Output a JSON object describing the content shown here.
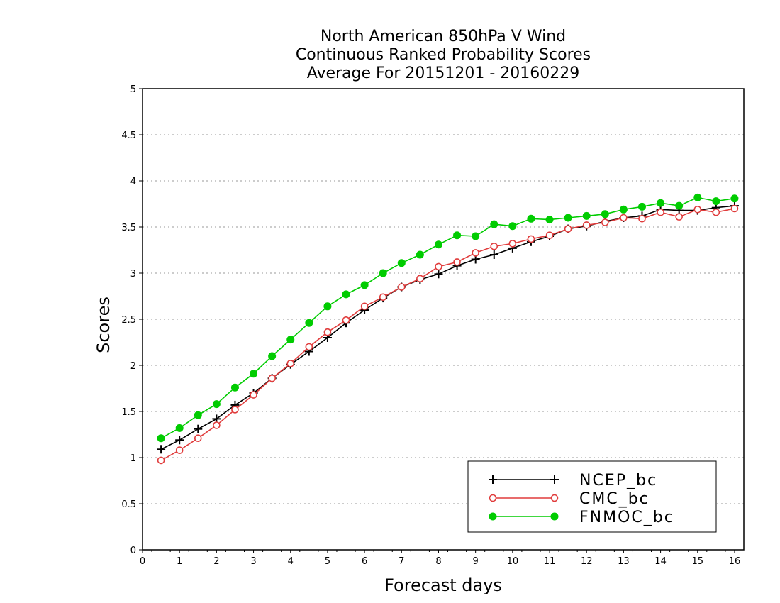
{
  "chart_data": {
    "type": "line",
    "title": [
      "North American 850hPa V Wind",
      "Continuous Ranked Probability Scores",
      "Average For 20151201 - 20160229"
    ],
    "xlabel": "Forecast days",
    "ylabel": "Scores",
    "xlim": [
      0,
      16.25
    ],
    "ylim": [
      0,
      5
    ],
    "xticks": [
      "0",
      "1",
      "2",
      "3",
      "4",
      "5",
      "6",
      "7",
      "8",
      "9",
      "10",
      "11",
      "12",
      "13",
      "14",
      "15",
      "16"
    ],
    "yticks": [
      "0",
      "0.5",
      "1",
      "1.5",
      "2",
      "2.5",
      "3",
      "3.5",
      "4",
      "4.5",
      "5"
    ],
    "grid": true,
    "legend_position": "bottom-right",
    "x": [
      0.5,
      1,
      1.5,
      2,
      2.5,
      3,
      3.5,
      4,
      4.5,
      5,
      5.5,
      6,
      6.5,
      7,
      7.5,
      8,
      8.5,
      9,
      9.5,
      10,
      10.5,
      11,
      11.5,
      12,
      12.5,
      13,
      13.5,
      14,
      14.5,
      15,
      15.5,
      16
    ],
    "series": [
      {
        "name": "NCEP_bc",
        "color": "#000000",
        "marker": "plus",
        "values": [
          1.09,
          1.19,
          1.31,
          1.42,
          1.57,
          1.7,
          1.86,
          2.01,
          2.15,
          2.3,
          2.46,
          2.6,
          2.73,
          2.85,
          2.93,
          2.99,
          3.08,
          3.15,
          3.2,
          3.27,
          3.34,
          3.4,
          3.48,
          3.51,
          3.56,
          3.6,
          3.62,
          3.69,
          3.68,
          3.68,
          3.71,
          3.73
        ]
      },
      {
        "name": "CMC_bc",
        "color": "#e03c3c",
        "marker": "open-circle",
        "values": [
          0.97,
          1.08,
          1.21,
          1.35,
          1.52,
          1.68,
          1.86,
          2.02,
          2.2,
          2.36,
          2.49,
          2.64,
          2.74,
          2.85,
          2.94,
          3.07,
          3.12,
          3.22,
          3.29,
          3.32,
          3.37,
          3.41,
          3.48,
          3.52,
          3.55,
          3.6,
          3.59,
          3.66,
          3.61,
          3.69,
          3.66,
          3.7
        ]
      },
      {
        "name": "FNMOC_bc",
        "color": "#00cc00",
        "marker": "filled-circle",
        "values": [
          1.21,
          1.32,
          1.46,
          1.58,
          1.76,
          1.91,
          2.1,
          2.28,
          2.46,
          2.64,
          2.77,
          2.87,
          3.0,
          3.11,
          3.2,
          3.31,
          3.41,
          3.4,
          3.53,
          3.51,
          3.59,
          3.58,
          3.6,
          3.62,
          3.64,
          3.69,
          3.72,
          3.76,
          3.73,
          3.82,
          3.78,
          3.81
        ]
      }
    ]
  }
}
